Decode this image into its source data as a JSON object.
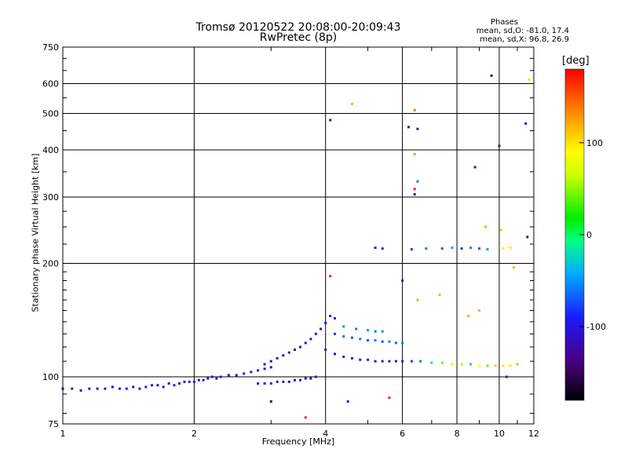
{
  "header": {
    "title_line1": "Tromsø 20120522 20:08:00-20:09:43",
    "title_line2": "RwPretec (8p)"
  },
  "phases": {
    "heading": "Phases",
    "line_o": "mean, sd,O: -81.0, 17.4",
    "line_x": "mean, sd,X:  96.8, 26.9"
  },
  "colorbar": {
    "unit": "[deg]",
    "ticks": [
      {
        "value": 100,
        "label": "100"
      },
      {
        "value": 0,
        "label": "0"
      },
      {
        "value": -100,
        "label": "-100"
      }
    ],
    "range": [
      -180,
      180
    ]
  },
  "chart_data": {
    "type": "scatter",
    "xlabel": "Frequency [MHz]",
    "ylabel": "Stationary phase Virtual Height [km]",
    "x_scale": "log",
    "y_scale": "log",
    "xlim": [
      1,
      12
    ],
    "ylim": [
      75,
      750
    ],
    "x_ticks": [
      1,
      2,
      4,
      6,
      8,
      10,
      12
    ],
    "y_ticks": [
      75,
      100,
      200,
      300,
      400,
      500,
      600,
      750
    ],
    "grid": true,
    "color_encoding": "phase [deg]",
    "series": [
      {
        "points": [
          [
            1.0,
            93,
            -115
          ],
          [
            1.05,
            93,
            -110
          ],
          [
            1.1,
            92,
            -110
          ],
          [
            1.15,
            93,
            -105
          ],
          [
            1.2,
            93,
            -110
          ],
          [
            1.25,
            93,
            -105
          ],
          [
            1.3,
            94,
            -115
          ],
          [
            1.35,
            93,
            -100
          ],
          [
            1.4,
            93,
            -110
          ],
          [
            1.45,
            94,
            -100
          ],
          [
            1.5,
            93,
            -110
          ],
          [
            1.55,
            94,
            -100
          ],
          [
            1.6,
            95,
            -110
          ],
          [
            1.65,
            95,
            -100
          ],
          [
            1.7,
            94,
            -110
          ],
          [
            1.75,
            96,
            -100
          ],
          [
            1.8,
            95,
            -110
          ],
          [
            1.85,
            96,
            -100
          ],
          [
            1.9,
            97,
            -105
          ],
          [
            1.95,
            97,
            -100
          ],
          [
            2.0,
            97,
            -110
          ],
          [
            2.05,
            98,
            -100
          ],
          [
            2.1,
            98,
            -105
          ],
          [
            2.15,
            99,
            -100
          ],
          [
            2.2,
            100,
            -110
          ],
          [
            2.25,
            99,
            -100
          ],
          [
            2.3,
            100,
            -105
          ],
          [
            2.4,
            101,
            -100
          ],
          [
            2.5,
            101,
            -110
          ],
          [
            2.6,
            102,
            -100
          ],
          [
            2.7,
            103,
            -105
          ],
          [
            2.8,
            104,
            -110
          ],
          [
            2.9,
            105,
            -100
          ],
          [
            3.0,
            106,
            -110
          ]
        ]
      },
      {
        "points": [
          [
            2.8,
            96,
            -110
          ],
          [
            2.9,
            96,
            -115
          ],
          [
            3.0,
            96,
            -110
          ],
          [
            3.1,
            97,
            -115
          ],
          [
            3.2,
            97,
            -110
          ],
          [
            3.3,
            97,
            -115
          ],
          [
            3.4,
            98,
            -110
          ],
          [
            3.5,
            98,
            -115
          ],
          [
            3.6,
            99,
            -110
          ],
          [
            3.7,
            99,
            -115
          ],
          [
            3.8,
            100,
            -110
          ]
        ]
      },
      {
        "points": [
          [
            2.9,
            108,
            -115
          ],
          [
            3.0,
            110,
            -120
          ],
          [
            3.1,
            112,
            -115
          ],
          [
            3.2,
            114,
            -120
          ],
          [
            3.3,
            116,
            -115
          ],
          [
            3.4,
            118,
            -120
          ],
          [
            3.5,
            120,
            -115
          ],
          [
            3.6,
            123,
            -110
          ],
          [
            3.7,
            126,
            -115
          ],
          [
            3.8,
            130,
            -110
          ],
          [
            3.9,
            134,
            -105
          ],
          [
            4.0,
            139,
            -100
          ],
          [
            4.1,
            145,
            -110
          ],
          [
            4.2,
            143,
            -100
          ]
        ]
      },
      {
        "points": [
          [
            4.0,
            118,
            -100
          ],
          [
            4.2,
            115,
            -105
          ],
          [
            4.4,
            113,
            -100
          ],
          [
            4.6,
            112,
            -110
          ],
          [
            4.8,
            111,
            -100
          ],
          [
            5.0,
            111,
            -105
          ],
          [
            5.2,
            110,
            -100
          ],
          [
            5.4,
            110,
            -110
          ],
          [
            5.6,
            110,
            -100
          ],
          [
            5.8,
            110,
            -105
          ],
          [
            6.0,
            110,
            -100
          ],
          [
            6.3,
            110,
            -80
          ],
          [
            6.6,
            110,
            -60
          ],
          [
            7.0,
            109,
            -20
          ],
          [
            7.4,
            109,
            40
          ],
          [
            7.8,
            108,
            80
          ],
          [
            8.2,
            108,
            60
          ],
          [
            8.6,
            108,
            20
          ],
          [
            9.0,
            107,
            90
          ],
          [
            9.4,
            107,
            40
          ],
          [
            9.8,
            107,
            110
          ],
          [
            10.2,
            107,
            70
          ],
          [
            10.6,
            107,
            100
          ],
          [
            11.0,
            108,
            120
          ]
        ]
      },
      {
        "points": [
          [
            4.2,
            130,
            -80
          ],
          [
            4.4,
            128,
            -60
          ],
          [
            4.6,
            127,
            -70
          ],
          [
            4.8,
            126,
            -60
          ],
          [
            5.0,
            125,
            -70
          ],
          [
            5.2,
            125,
            -60
          ],
          [
            5.4,
            124,
            -70
          ],
          [
            5.6,
            124,
            -60
          ],
          [
            5.8,
            123,
            -70
          ],
          [
            6.0,
            123,
            -60
          ]
        ]
      },
      {
        "points": [
          [
            4.4,
            136,
            -50
          ],
          [
            4.7,
            134,
            -60
          ],
          [
            5.0,
            133,
            -50
          ],
          [
            5.2,
            132,
            -60
          ],
          [
            5.4,
            132,
            -50
          ]
        ]
      },
      {
        "points": [
          [
            5.2,
            220,
            -100
          ],
          [
            5.4,
            219,
            -110
          ],
          [
            6.3,
            218,
            -80
          ],
          [
            6.8,
            219,
            -60
          ],
          [
            7.4,
            219,
            -70
          ],
          [
            7.8,
            220,
            -50
          ],
          [
            8.2,
            219,
            -80
          ],
          [
            8.6,
            220,
            -60
          ],
          [
            9.0,
            219,
            -70
          ],
          [
            9.4,
            218,
            -50
          ],
          [
            10.2,
            219,
            80
          ],
          [
            10.6,
            220,
            100
          ]
        ]
      },
      {
        "points": [
          [
            4.1,
            480,
            -110
          ],
          [
            4.6,
            530,
            120
          ],
          [
            6.4,
            510,
            140
          ],
          [
            6.2,
            460,
            -110
          ],
          [
            6.5,
            455,
            -120
          ],
          [
            6.4,
            390,
            130
          ],
          [
            6.5,
            330,
            -60
          ],
          [
            6.4,
            305,
            -130
          ],
          [
            6.4,
            315,
            170
          ],
          [
            8.8,
            360,
            -130
          ],
          [
            9.6,
            630,
            -150
          ],
          [
            10.0,
            410,
            -130
          ],
          [
            11.5,
            470,
            -110
          ],
          [
            11.7,
            615,
            100
          ],
          [
            11.6,
            235,
            -120
          ],
          [
            4.1,
            185,
            170
          ],
          [
            5.6,
            88,
            170
          ],
          [
            4.5,
            86,
            -100
          ],
          [
            3.0,
            86,
            -150
          ],
          [
            3.6,
            78,
            170
          ],
          [
            6.5,
            160,
            120
          ],
          [
            7.3,
            165,
            120
          ],
          [
            6.0,
            180,
            -100
          ],
          [
            8.5,
            145,
            120
          ],
          [
            9.0,
            150,
            120
          ],
          [
            10.8,
            195,
            120
          ],
          [
            10.4,
            100,
            -100
          ],
          [
            9.3,
            250,
            40
          ],
          [
            10.1,
            245,
            60
          ]
        ]
      }
    ]
  }
}
